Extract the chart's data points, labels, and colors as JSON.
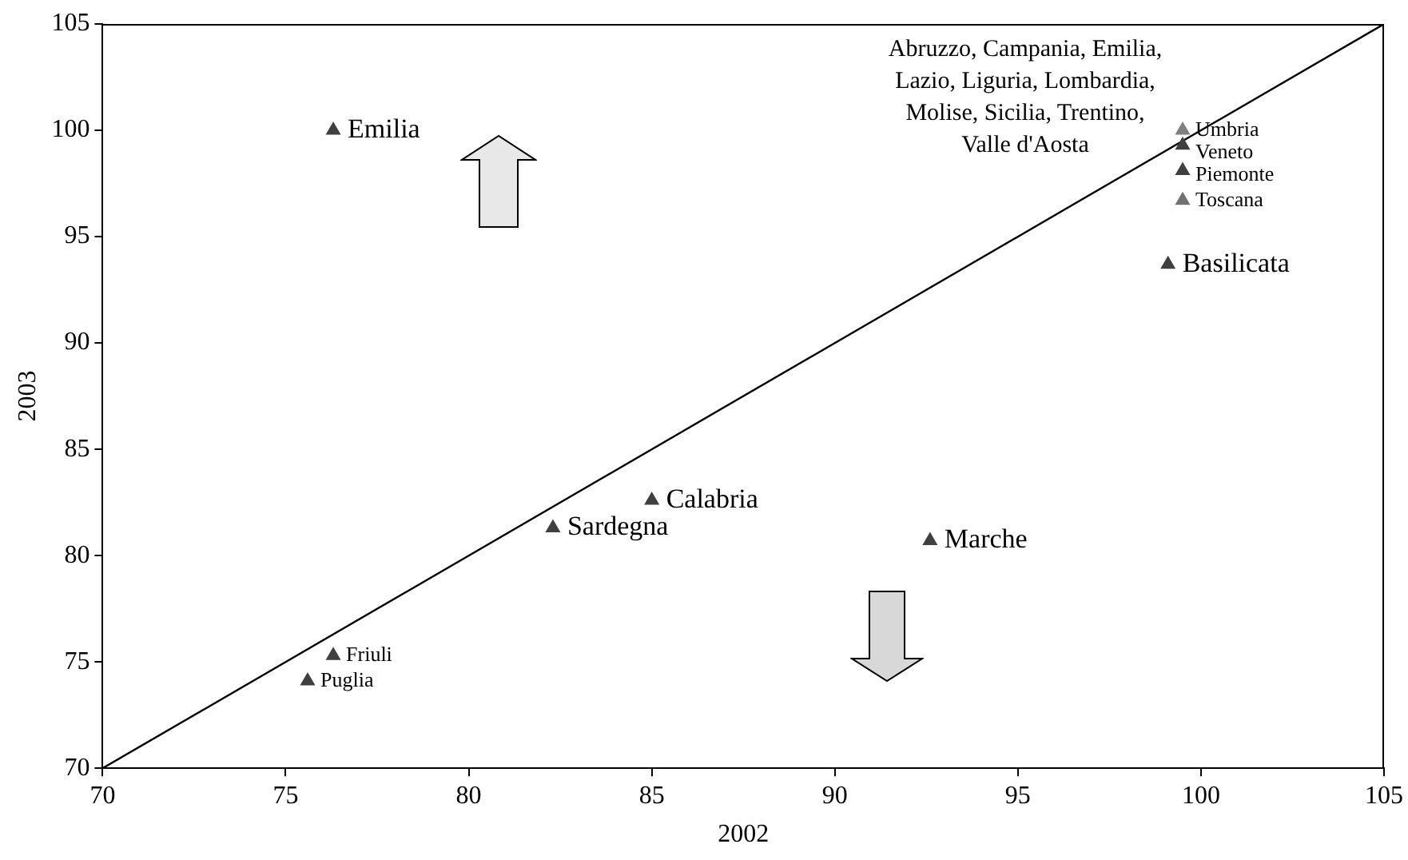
{
  "chart_data": {
    "type": "scatter",
    "xlabel": "2002",
    "ylabel": "2003",
    "xlim": [
      70,
      105
    ],
    "ylim": [
      70,
      105
    ],
    "xticks": [
      70,
      75,
      80,
      85,
      90,
      95,
      100,
      105
    ],
    "yticks": [
      70,
      75,
      80,
      85,
      90,
      95,
      100,
      105
    ],
    "grid": false,
    "legend": false,
    "marker": "triangle",
    "annotations": [
      "Abruzzo, Campania, Emilia,\nLazio, Liguria, Lombardia,\nMolise, Sicilia, Trentino,\nValle d'Aosta"
    ],
    "series": [
      {
        "name": "Emilia",
        "color": "#404040",
        "x": [
          76.3
        ],
        "values": [
          100
        ]
      },
      {
        "name": "Friuli",
        "color": "#404040",
        "x": [
          76.3
        ],
        "values": [
          75.3
        ]
      },
      {
        "name": "Puglia",
        "color": "#404040",
        "x": [
          75.6
        ],
        "values": [
          74.1
        ]
      },
      {
        "name": "Sardegna",
        "color": "#404040",
        "x": [
          82.3
        ],
        "values": [
          81.3
        ]
      },
      {
        "name": "Calabria",
        "color": "#404040",
        "x": [
          85.0
        ],
        "values": [
          82.6
        ]
      },
      {
        "name": "Marche",
        "color": "#404040",
        "x": [
          92.6
        ],
        "values": [
          80.7
        ]
      },
      {
        "name": "Umbria",
        "color": "#808080",
        "x": [
          99.5
        ],
        "values": [
          100
        ]
      },
      {
        "name": "Veneto",
        "color": "#404040",
        "x": [
          99.5
        ],
        "values": [
          99.3
        ]
      },
      {
        "name": "Piemonte",
        "color": "#404040",
        "x": [
          99.5
        ],
        "values": [
          98.1
        ]
      },
      {
        "name": "Toscana",
        "color": "#707070",
        "x": [
          99.5
        ],
        "values": [
          96.7
        ]
      },
      {
        "name": "Basilicata",
        "color": "#404040",
        "x": [
          99.1
        ],
        "values": [
          93.7
        ]
      },
      {
        "type": "line",
        "color": "#000000",
        "marker": "none",
        "x": [
          70,
          105
        ],
        "values": [
          70,
          105
        ]
      }
    ]
  }
}
